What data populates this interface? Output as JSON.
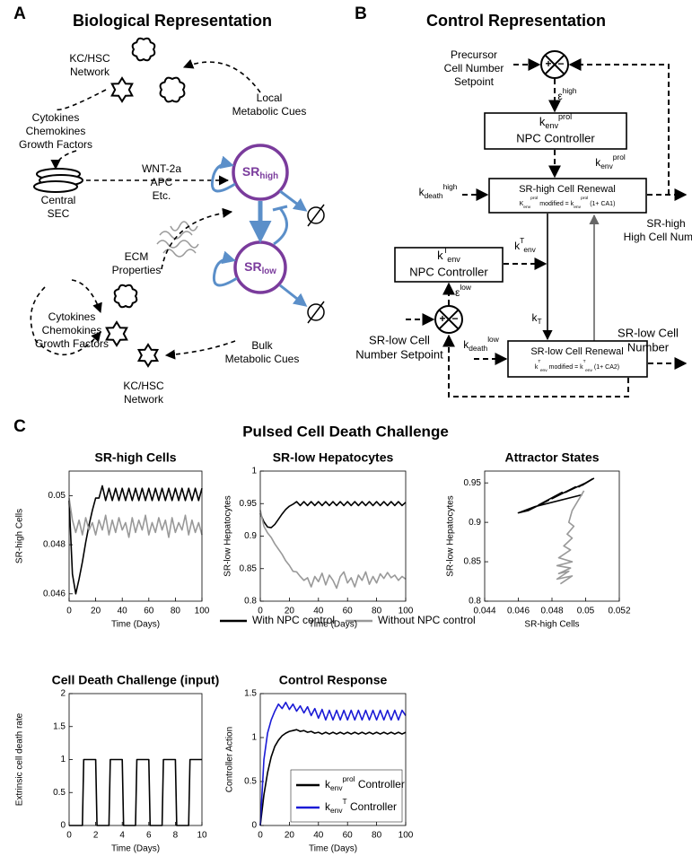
{
  "panel_a": {
    "label": "A",
    "title": "Biological Representation",
    "kc_hsc_top": [
      "KC/HSC",
      "Network"
    ],
    "local_cues": [
      "Local",
      "Metabolic Cues"
    ],
    "factors_top": [
      "Cytokines",
      "Chemokines",
      "Growth Factors"
    ],
    "sec": [
      "Central",
      "SEC"
    ],
    "signals": [
      "WNT-2a",
      "APC",
      "Etc."
    ],
    "sr_high": {
      "base": "SR",
      "sub": "high"
    },
    "sr_low": {
      "base": "SR",
      "sub": "low"
    },
    "ecm": [
      "ECM",
      "Properties"
    ],
    "factors_bottom": [
      "Cytokines",
      "Chemokines",
      "Growth Factors"
    ],
    "kc_hsc_bottom": [
      "KC/HSC",
      "Network"
    ],
    "bulk_cues": [
      "Bulk",
      "Metabolic Cues"
    ]
  },
  "panel_b": {
    "label": "B",
    "title": "Control Representation",
    "precursor_setpoint": [
      "Precursor",
      "Cell Number",
      "Setpoint"
    ],
    "sum_high": {
      "plus": "+",
      "minus": "−"
    },
    "sum_low": {
      "plus": "+",
      "minus": "−"
    },
    "eps_high": {
      "base": "ε",
      "sup": "high"
    },
    "prol_controller": {
      "symbol": {
        "base": "k",
        "sub": "env",
        "sup": "prol"
      },
      "name": "NPC Controller"
    },
    "k_prol": {
      "base": "k",
      "sub": "env",
      "sup": "prol"
    },
    "k_death_high": {
      "base": "k",
      "sub": "death",
      "sup": "high"
    },
    "sr_high_renewal": {
      "name": "SR-high Cell Renewal",
      "note": [
        {
          "base": "K",
          "sub": "env",
          "sup": "prol"
        },
        {
          "base": " modified = k",
          "sub": "env",
          "sup": "prol"
        },
        {
          "base": " (1+ CA1)"
        }
      ]
    },
    "sr_high_output": [
      "SR-high",
      "High Cell Number"
    ],
    "t_controller": {
      "symbol": {
        "base": "k",
        "sup": "T",
        "sub": "env"
      },
      "name": "NPC Controller"
    },
    "k_t_env": {
      "base": "k",
      "sup": "T",
      "sub": "env"
    },
    "eps_low": {
      "base": "ε",
      "sup": "low"
    },
    "sr_low_setpoint": [
      "SR-low Cell",
      "Number Setpoint"
    ],
    "k_t": {
      "base": "k",
      "sub": "T"
    },
    "k_death_low": {
      "base": "k",
      "sub": "death",
      "sup": "low"
    },
    "sr_low_renewal": {
      "name": "SR-low Cell Renewal",
      "note": [
        {
          "base": "k",
          "sup": "T",
          "sub": "env"
        },
        {
          "base": " modified = k",
          "sup": "T",
          "sub": "env"
        },
        {
          "base": " (1+ CA2)"
        }
      ]
    },
    "sr_low_output": [
      "SR-low Cell",
      "Number"
    ]
  },
  "panel_c": {
    "label": "C",
    "title": "Pulsed Cell Death Challenge"
  },
  "chart_data": [
    {
      "type": "line",
      "title": "SR-high Cells",
      "xlabel": "Time (Days)",
      "ylabel": "SR-high Cells",
      "xlim": [
        0,
        100
      ],
      "ylim": [
        0.0457,
        0.051
      ],
      "xticks": [
        0,
        20,
        40,
        60,
        80,
        100
      ],
      "yticks": [
        0.046,
        0.048,
        0.05
      ],
      "legend": "below",
      "x": [
        0,
        2.5,
        5,
        7.5,
        10,
        12.5,
        15,
        17.5,
        20,
        22.5,
        25,
        27.5,
        30,
        32.5,
        35,
        37.5,
        40,
        42.5,
        45,
        47.5,
        50,
        52.5,
        55,
        57.5,
        60,
        62.5,
        65,
        67.5,
        70,
        72.5,
        75,
        77.5,
        80,
        82.5,
        85,
        87.5,
        90,
        92.5,
        95,
        97.5,
        100
      ],
      "series": [
        {
          "name": "With NPC control",
          "color": "#000000",
          "values": [
            0.0498,
            0.0468,
            0.046,
            0.0466,
            0.0473,
            0.0481,
            0.0488,
            0.0494,
            0.0499,
            0.0499,
            0.0504,
            0.0498,
            0.0503,
            0.0498,
            0.0503,
            0.0498,
            0.0503,
            0.0498,
            0.0503,
            0.0498,
            0.0503,
            0.0498,
            0.0503,
            0.0498,
            0.0503,
            0.0498,
            0.0503,
            0.0498,
            0.0503,
            0.0498,
            0.0503,
            0.0498,
            0.0503,
            0.0498,
            0.0503,
            0.0498,
            0.0503,
            0.0498,
            0.0503,
            0.0498,
            0.0503
          ]
        },
        {
          "name": "Without NPC control",
          "color": "#999999",
          "values": [
            0.0499,
            0.049,
            0.0485,
            0.049,
            0.0484,
            0.0491,
            0.0486,
            0.0489,
            0.0484,
            0.049,
            0.0486,
            0.0492,
            0.0484,
            0.049,
            0.0485,
            0.0491,
            0.0486,
            0.0489,
            0.0483,
            0.0491,
            0.0485,
            0.049,
            0.0486,
            0.0492,
            0.0484,
            0.0489,
            0.0485,
            0.0491,
            0.0486,
            0.049,
            0.0483,
            0.0491,
            0.0485,
            0.0489,
            0.0486,
            0.0492,
            0.0484,
            0.049,
            0.0485,
            0.0489,
            0.0484
          ]
        }
      ]
    },
    {
      "type": "line",
      "title": "SR-low Hepatocytes",
      "xlabel": "Time (Days)",
      "ylabel": "SR-low Hepatocytes",
      "xlim": [
        0,
        100
      ],
      "ylim": [
        0.8,
        1
      ],
      "xticks": [
        0,
        20,
        40,
        60,
        80,
        100
      ],
      "yticks": [
        0.8,
        0.85,
        0.9,
        0.95,
        1
      ],
      "x": [
        0,
        2.5,
        5,
        7.5,
        10,
        12.5,
        15,
        17.5,
        20,
        22.5,
        25,
        27.5,
        30,
        32.5,
        35,
        37.5,
        40,
        42.5,
        45,
        47.5,
        50,
        52.5,
        55,
        57.5,
        60,
        62.5,
        65,
        67.5,
        70,
        72.5,
        75,
        77.5,
        80,
        82.5,
        85,
        87.5,
        90,
        92.5,
        95,
        97.5,
        100
      ],
      "series": [
        {
          "color": "#000000",
          "values": [
            0.935,
            0.922,
            0.914,
            0.913,
            0.918,
            0.926,
            0.934,
            0.941,
            0.946,
            0.949,
            0.953,
            0.947,
            0.953,
            0.947,
            0.953,
            0.947,
            0.953,
            0.947,
            0.953,
            0.947,
            0.953,
            0.947,
            0.953,
            0.947,
            0.953,
            0.947,
            0.953,
            0.947,
            0.953,
            0.947,
            0.953,
            0.947,
            0.953,
            0.947,
            0.953,
            0.947,
            0.953,
            0.947,
            0.953,
            0.947,
            0.952
          ]
        },
        {
          "color": "#999999",
          "values": [
            0.94,
            0.915,
            0.905,
            0.898,
            0.888,
            0.88,
            0.872,
            0.862,
            0.855,
            0.846,
            0.845,
            0.838,
            0.832,
            0.836,
            0.822,
            0.838,
            0.83,
            0.843,
            0.825,
            0.84,
            0.832,
            0.82,
            0.838,
            0.845,
            0.828,
            0.836,
            0.822,
            0.84,
            0.832,
            0.845,
            0.826,
            0.838,
            0.828,
            0.842,
            0.835,
            0.844,
            0.836,
            0.84,
            0.832,
            0.838,
            0.834
          ]
        }
      ]
    },
    {
      "type": "line",
      "title": "Attractor States",
      "xlabel": "SR-high Cells",
      "ylabel": "SR-low Hepatocytes",
      "xlim": [
        0.044,
        0.052
      ],
      "ylim": [
        0.8,
        0.965
      ],
      "xticks": [
        0.044,
        0.046,
        0.048,
        0.05,
        0.052
      ],
      "yticks": [
        0.8,
        0.85,
        0.9,
        0.95
      ],
      "series": [
        {
          "color": "#000000",
          "x": [
            0.0498,
            0.047,
            0.046,
            0.0466,
            0.0478,
            0.0472,
            0.0486,
            0.048,
            0.0494,
            0.0488,
            0.05,
            0.0496,
            0.0504,
            0.0498,
            0.0505
          ],
          "values": [
            0.935,
            0.92,
            0.912,
            0.915,
            0.928,
            0.922,
            0.938,
            0.93,
            0.945,
            0.938,
            0.95,
            0.945,
            0.955,
            0.947,
            0.956
          ]
        },
        {
          "color": "#999999",
          "x": [
            0.0499,
            0.0492,
            0.049,
            0.0493,
            0.0489,
            0.0492,
            0.0487,
            0.0491,
            0.0484,
            0.0492,
            0.0483,
            0.0491,
            0.0484,
            0.049,
            0.0483,
            0.0492,
            0.0485
          ],
          "values": [
            0.94,
            0.915,
            0.9,
            0.895,
            0.885,
            0.88,
            0.87,
            0.865,
            0.855,
            0.85,
            0.845,
            0.842,
            0.835,
            0.838,
            0.828,
            0.832,
            0.822
          ]
        }
      ]
    },
    {
      "type": "line",
      "title": "Cell Death Challenge (input)",
      "xlabel": "Time (Days)",
      "ylabel": "Extrinsic cell death rate",
      "xlim": [
        0,
        10
      ],
      "ylim": [
        0,
        2
      ],
      "xticks": [
        0,
        2,
        4,
        6,
        8,
        10
      ],
      "yticks": [
        0,
        0.5,
        1,
        1.5,
        2
      ],
      "series": [
        {
          "color": "#000000",
          "x": [
            0,
            1,
            1.1,
            2,
            2.1,
            3,
            3.1,
            4,
            4.1,
            5,
            5.1,
            6,
            6.1,
            7,
            7.1,
            8,
            8.1,
            9,
            9.1,
            10
          ],
          "values": [
            0,
            0,
            1,
            1,
            0,
            0,
            1,
            1,
            0,
            0,
            1,
            1,
            0,
            0,
            1,
            1,
            0,
            0,
            1,
            1
          ]
        }
      ]
    },
    {
      "type": "line",
      "title": "Control Response",
      "xlabel": "Time (Days)",
      "ylabel": "Controller Action",
      "xlim": [
        0,
        100
      ],
      "ylim": [
        0,
        1.5
      ],
      "xticks": [
        0,
        20,
        40,
        60,
        80,
        100
      ],
      "yticks": [
        0,
        0.5,
        1,
        1.5
      ],
      "legend": "lower right",
      "x": [
        0,
        2.5,
        5,
        7.5,
        10,
        12.5,
        15,
        17.5,
        20,
        22.5,
        25,
        27.5,
        30,
        32.5,
        35,
        37.5,
        40,
        42.5,
        45,
        47.5,
        50,
        52.5,
        55,
        57.5,
        60,
        62.5,
        65,
        67.5,
        70,
        72.5,
        75,
        77.5,
        80,
        82.5,
        85,
        87.5,
        90,
        92.5,
        95,
        97.5,
        100
      ],
      "series": [
        {
          "name": [
            {
              "base": "k",
              "sub": "env",
              "sup": "prol"
            },
            {
              "base": " Controller"
            }
          ],
          "color": "#000000",
          "values": [
            0,
            0.35,
            0.6,
            0.78,
            0.9,
            0.97,
            1.02,
            1.05,
            1.07,
            1.08,
            1.09,
            1.07,
            1.08,
            1.06,
            1.07,
            1.05,
            1.06,
            1.04,
            1.06,
            1.04,
            1.06,
            1.04,
            1.06,
            1.04,
            1.06,
            1.04,
            1.06,
            1.04,
            1.06,
            1.04,
            1.06,
            1.04,
            1.06,
            1.04,
            1.06,
            1.04,
            1.06,
            1.04,
            1.06,
            1.04,
            1.06
          ]
        },
        {
          "name": [
            {
              "base": "k",
              "sub": "env",
              "sup": "T"
            },
            {
              "base": " Controller"
            }
          ],
          "color": "#1a1ad6",
          "values": [
            0,
            0.75,
            1.05,
            1.2,
            1.3,
            1.38,
            1.33,
            1.4,
            1.32,
            1.38,
            1.3,
            1.36,
            1.28,
            1.35,
            1.25,
            1.33,
            1.22,
            1.32,
            1.2,
            1.31,
            1.2,
            1.31,
            1.2,
            1.31,
            1.2,
            1.31,
            1.2,
            1.31,
            1.2,
            1.31,
            1.2,
            1.31,
            1.2,
            1.31,
            1.2,
            1.31,
            1.2,
            1.31,
            1.2,
            1.31,
            1.25
          ]
        }
      ]
    }
  ]
}
